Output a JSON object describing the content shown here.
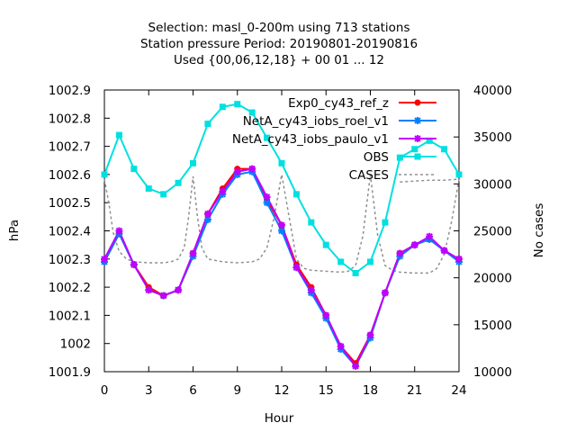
{
  "chart_data": {
    "type": "line",
    "title_lines": [
      "Selection: masl_0-200m using   713 stations",
      "Station pressure   Period: 20190801-20190816",
      "Used {00,06,12,18} + 00 01 ... 12"
    ],
    "xlabel": "Hour",
    "ylabel": "hPa",
    "y2label": "No cases",
    "xlim": [
      0,
      24
    ],
    "ylim": [
      1001.9,
      1002.9
    ],
    "y2lim": [
      10000,
      40000
    ],
    "xticks": [
      0,
      3,
      6,
      9,
      12,
      15,
      18,
      21,
      24
    ],
    "xtick_labels": [
      "0",
      "3",
      "6",
      "9",
      "12",
      "15",
      "18",
      "21",
      "24"
    ],
    "yticks": [
      1001.9,
      1002,
      1002.1,
      1002.2,
      1002.3,
      1002.4,
      1002.5,
      1002.6,
      1002.7,
      1002.8,
      1002.9
    ],
    "ytick_labels": [
      "1001.9",
      "1002",
      "1002.1",
      "1002.2",
      "1002.3",
      "1002.4",
      "1002.5",
      "1002.6",
      "1002.7",
      "1002.8",
      "1002.9"
    ],
    "y2ticks": [
      10000,
      15000,
      20000,
      25000,
      30000,
      35000,
      40000
    ],
    "y2tick_labels": [
      "10000",
      "15000",
      "20000",
      "25000",
      "30000",
      "35000",
      "40000"
    ],
    "grid": false,
    "legend_position": "top-right",
    "series": [
      {
        "name": "Exp0_cy43_ref_z",
        "color": "#ff0000",
        "marker": "circle",
        "axis": "left",
        "x": [
          0,
          1,
          2,
          3,
          4,
          5,
          6,
          7,
          8,
          9,
          10,
          11,
          12,
          13,
          14,
          15,
          16,
          17,
          18,
          19,
          20,
          21,
          22,
          23,
          24
        ],
        "values": [
          1002.29,
          1002.39,
          1002.28,
          1002.2,
          1002.17,
          1002.19,
          1002.32,
          1002.46,
          1002.55,
          1002.62,
          1002.62,
          1002.51,
          1002.42,
          1002.28,
          1002.2,
          1002.1,
          1001.99,
          1001.93,
          1002.03,
          1002.18,
          1002.32,
          1002.35,
          1002.37,
          1002.33,
          1002.3
        ]
      },
      {
        "name": "NetA_cy43_iobs_roel_v1",
        "color": "#0080ff",
        "marker": "star",
        "axis": "left",
        "x": [
          0,
          1,
          2,
          3,
          4,
          5,
          6,
          7,
          8,
          9,
          10,
          11,
          12,
          13,
          14,
          15,
          16,
          17,
          18,
          19,
          20,
          21,
          22,
          23,
          24
        ],
        "values": [
          1002.29,
          1002.39,
          1002.28,
          1002.19,
          1002.17,
          1002.19,
          1002.31,
          1002.44,
          1002.53,
          1002.6,
          1002.61,
          1002.5,
          1002.4,
          1002.27,
          1002.18,
          1002.09,
          1001.98,
          1001.92,
          1002.02,
          1002.18,
          1002.31,
          1002.35,
          1002.37,
          1002.33,
          1002.29
        ]
      },
      {
        "name": "NetA_cy43_iobs_paulo_v1",
        "color": "#c000ff",
        "marker": "star",
        "axis": "left",
        "x": [
          0,
          1,
          2,
          3,
          4,
          5,
          6,
          7,
          8,
          9,
          10,
          11,
          12,
          13,
          14,
          15,
          16,
          17,
          18,
          19,
          20,
          21,
          22,
          23,
          24
        ],
        "values": [
          1002.3,
          1002.4,
          1002.28,
          1002.19,
          1002.17,
          1002.19,
          1002.32,
          1002.46,
          1002.54,
          1002.61,
          1002.62,
          1002.52,
          1002.42,
          1002.27,
          1002.19,
          1002.1,
          1001.99,
          1001.92,
          1002.03,
          1002.18,
          1002.32,
          1002.35,
          1002.38,
          1002.33,
          1002.3
        ]
      },
      {
        "name": "OBS",
        "color": "#00e0e0",
        "marker": "square",
        "axis": "left",
        "x": [
          0,
          1,
          2,
          3,
          4,
          5,
          6,
          7,
          8,
          9,
          10,
          11,
          12,
          13,
          14,
          15,
          16,
          17,
          18,
          19,
          20,
          21,
          22,
          23,
          24
        ],
        "values": [
          1002.6,
          1002.74,
          1002.62,
          1002.55,
          1002.53,
          1002.57,
          1002.64,
          1002.78,
          1002.84,
          1002.85,
          1002.82,
          1002.73,
          1002.64,
          1002.53,
          1002.43,
          1002.35,
          1002.29,
          1002.25,
          1002.29,
          1002.43,
          1002.66,
          1002.69,
          1002.72,
          1002.69,
          1002.6
        ]
      },
      {
        "name": "CASES",
        "color": "#909090",
        "dashed": true,
        "axis": "right",
        "points": [
          [
            0,
            30500
          ],
          [
            0.3,
            28000
          ],
          [
            0.6,
            24800
          ],
          [
            1,
            22800
          ],
          [
            1.5,
            22000
          ],
          [
            2,
            21700
          ],
          [
            3,
            21600
          ],
          [
            4,
            21600
          ],
          [
            4.5,
            21700
          ],
          [
            5,
            22000
          ],
          [
            5.4,
            23200
          ],
          [
            5.7,
            26500
          ],
          [
            6,
            30800
          ],
          [
            6.3,
            26500
          ],
          [
            6.6,
            23200
          ],
          [
            7,
            22000
          ],
          [
            8,
            21700
          ],
          [
            9,
            21600
          ],
          [
            10,
            21700
          ],
          [
            10.5,
            22000
          ],
          [
            11,
            23200
          ],
          [
            11.5,
            26500
          ],
          [
            12,
            31000
          ],
          [
            12.5,
            26500
          ],
          [
            13,
            22000
          ],
          [
            13.5,
            21000
          ],
          [
            14,
            20800
          ],
          [
            15,
            20700
          ],
          [
            16,
            20600
          ],
          [
            16.5,
            20700
          ],
          [
            17,
            21300
          ],
          [
            17.5,
            24500
          ],
          [
            18,
            31000
          ],
          [
            18.5,
            24500
          ],
          [
            19,
            21300
          ],
          [
            19.5,
            20800
          ],
          [
            20,
            20600
          ],
          [
            21,
            20500
          ],
          [
            22,
            20500
          ],
          [
            22.5,
            21000
          ],
          [
            23,
            22500
          ],
          [
            23.5,
            26000
          ],
          [
            24,
            30500
          ]
        ]
      },
      {
        "name": "",
        "color": "#909090",
        "dashed": true,
        "axis": "right",
        "points": [
          [
            20,
            30200
          ],
          [
            21,
            30300
          ],
          [
            22,
            30400
          ],
          [
            23,
            30400
          ],
          [
            24,
            30500
          ]
        ]
      }
    ]
  }
}
